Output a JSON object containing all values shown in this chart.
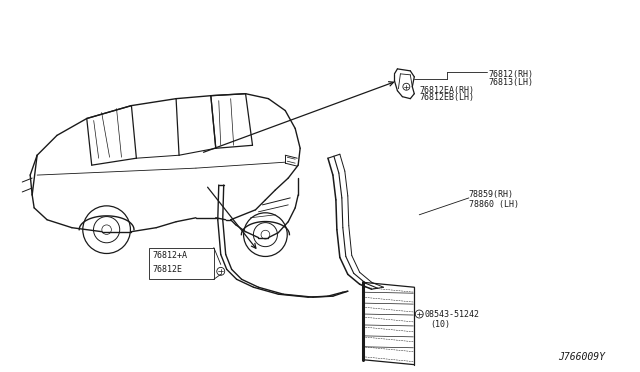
{
  "bg_color": "#ffffff",
  "line_color": "#1a1a1a",
  "diagram_code": "J766009Y",
  "labels": {
    "top_right_part1": "76812(RH)",
    "top_right_part2": "76813(LH)",
    "top_right_part3": "76812EA(RH)",
    "top_right_part4": "76812EB(LH)",
    "bottom_left_part1": "76812+A",
    "bottom_left_part2": "76812E",
    "bottom_right_part1": "78859(RH)",
    "bottom_right_part2": "78860 (LH)",
    "bottom_right_screw": "08543-51242",
    "bottom_right_qty": "(10)"
  },
  "font_size_label": 6.0,
  "font_size_code": 7.0
}
